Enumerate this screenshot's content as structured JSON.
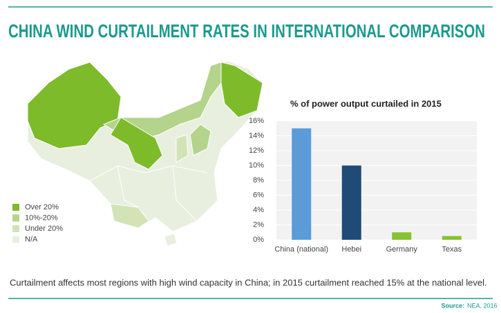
{
  "title": "CHINA WIND CURTAILMENT RATES IN INTERNATIONAL COMPARISON",
  "map_legend": [
    {
      "label": "Over 20%",
      "color": "#7dbb2a"
    },
    {
      "label": "10%-20%",
      "color": "#b3d48a"
    },
    {
      "label": "Under 20%",
      "color": "#d2e3b6"
    },
    {
      "label": "N/A",
      "color": "#e9efdf"
    }
  ],
  "chart_data": {
    "type": "bar",
    "title": "% of power output curtailed in 2015",
    "categories": [
      "China (national)",
      "Hebei",
      "Germany",
      "Texas"
    ],
    "values": [
      15,
      10,
      1,
      0.5
    ],
    "colors": [
      "#5b9bd8",
      "#1f4b76",
      "#86c232",
      "#86c232"
    ],
    "ylim": [
      0,
      16
    ],
    "yticks": [
      {
        "value": 0,
        "label": "0%"
      },
      {
        "value": 2,
        "label": "2%"
      },
      {
        "value": 4,
        "label": "4%"
      },
      {
        "value": 6,
        "label": "6%"
      },
      {
        "value": 8,
        "label": "8%"
      },
      {
        "value": 10,
        "label": "10%"
      },
      {
        "value": 12,
        "label": "12%"
      },
      {
        "value": 14,
        "label": "14%"
      },
      {
        "value": 16,
        "label": "16%"
      }
    ],
    "grid": true
  },
  "caption": "Curtailment affects most regions with high wind capacity in China; in 2015 curtailment reached 15% at the national level.",
  "source_label": "Source:",
  "source": "NEA, 2016"
}
